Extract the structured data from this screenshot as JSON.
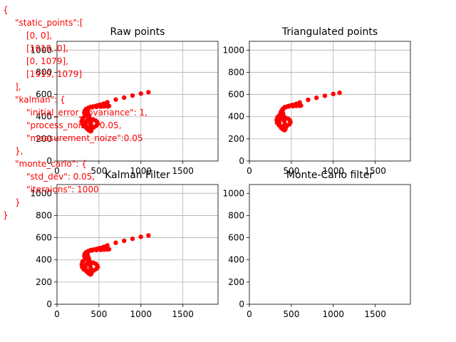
{
  "annotation": {
    "color": "#ff0000",
    "lines": [
      "{",
      "\"static_points\":[",
      "[0, 0],",
      "[1919, 0],",
      "[0, 1079],",
      "[1919, 1079]",
      "],",
      "\"kalman\": {",
      "\"initial_error_covariance\": 1,",
      "\"process_noise\": 0.05,",
      "\"measurement_noize\":0.05",
      "},",
      "\"monte_carlo\": {",
      "\"std_dev\": 0.05,",
      "\"iteraions\": 1000",
      "}",
      "}"
    ]
  },
  "chart_data": [
    {
      "type": "scatter",
      "title": "Raw points",
      "xlim": [
        0,
        1919
      ],
      "ylim": [
        0,
        1079
      ],
      "xticks": [
        0,
        500,
        1000,
        1500
      ],
      "yticks": [
        0,
        200,
        400,
        600,
        800,
        1000
      ],
      "grid": true,
      "color": "#ff0000",
      "points": [
        [
          1090,
          620
        ],
        [
          1000,
          608
        ],
        [
          900,
          590
        ],
        [
          800,
          572
        ],
        [
          700,
          554
        ],
        [
          600,
          530
        ],
        [
          560,
          518
        ],
        [
          520,
          508
        ],
        [
          500,
          504
        ],
        [
          480,
          500
        ],
        [
          460,
          496
        ],
        [
          430,
          492
        ],
        [
          400,
          488
        ],
        [
          370,
          478
        ],
        [
          345,
          468
        ],
        [
          330,
          452
        ],
        [
          325,
          435
        ],
        [
          335,
          420
        ],
        [
          355,
          412
        ],
        [
          330,
          405
        ],
        [
          305,
          385
        ],
        [
          295,
          360
        ],
        [
          300,
          335
        ],
        [
          318,
          315
        ],
        [
          345,
          302
        ],
        [
          378,
          296
        ],
        [
          410,
          297
        ],
        [
          440,
          305
        ],
        [
          468,
          318
        ],
        [
          485,
          334
        ],
        [
          480,
          350
        ],
        [
          460,
          365
        ],
        [
          432,
          374
        ],
        [
          400,
          378
        ],
        [
          370,
          374
        ],
        [
          350,
          362
        ],
        [
          340,
          345
        ],
        [
          340,
          325
        ],
        [
          348,
          305
        ],
        [
          360,
          290
        ],
        [
          380,
          276
        ],
        [
          400,
          268
        ],
        [
          410,
          275
        ],
        [
          410,
          290
        ],
        [
          405,
          310
        ],
        [
          400,
          330
        ],
        [
          395,
          352
        ],
        [
          390,
          372
        ],
        [
          385,
          392
        ],
        [
          380,
          410
        ],
        [
          372,
          425
        ],
        [
          365,
          440
        ],
        [
          360,
          455
        ],
        [
          365,
          470
        ],
        [
          380,
          478
        ],
        [
          420,
          485
        ],
        [
          470,
          488
        ],
        [
          520,
          490
        ],
        [
          560,
          492
        ],
        [
          600,
          494
        ],
        [
          620,
          496
        ],
        [
          610,
          500
        ],
        [
          560,
          503
        ]
      ]
    },
    {
      "type": "scatter",
      "title": "Triangulated points",
      "xlim": [
        0,
        1919
      ],
      "ylim": [
        0,
        1079
      ],
      "xticks": [
        0,
        500,
        1000,
        1500
      ],
      "yticks": [
        0,
        200,
        400,
        600,
        800,
        1000
      ],
      "grid": true,
      "color": "#ff0000",
      "points": [
        [
          1075,
          615
        ],
        [
          1000,
          605
        ],
        [
          900,
          588
        ],
        [
          800,
          570
        ],
        [
          700,
          552
        ],
        [
          600,
          528
        ],
        [
          560,
          516
        ],
        [
          520,
          506
        ],
        [
          500,
          502
        ],
        [
          480,
          498
        ],
        [
          460,
          494
        ],
        [
          440,
          488
        ],
        [
          420,
          480
        ],
        [
          400,
          470
        ],
        [
          385,
          455
        ],
        [
          375,
          440
        ],
        [
          372,
          425
        ],
        [
          360,
          415
        ],
        [
          335,
          395
        ],
        [
          325,
          370
        ],
        [
          330,
          345
        ],
        [
          350,
          325
        ],
        [
          380,
          312
        ],
        [
          415,
          310
        ],
        [
          450,
          318
        ],
        [
          478,
          332
        ],
        [
          490,
          350
        ],
        [
          482,
          368
        ],
        [
          460,
          382
        ],
        [
          430,
          390
        ],
        [
          398,
          390
        ],
        [
          372,
          380
        ],
        [
          358,
          362
        ],
        [
          355,
          340
        ],
        [
          362,
          318
        ],
        [
          380,
          298
        ],
        [
          400,
          285
        ],
        [
          420,
          278
        ],
        [
          430,
          290
        ],
        [
          428,
          312
        ],
        [
          422,
          335
        ],
        [
          416,
          360
        ],
        [
          410,
          385
        ],
        [
          405,
          410
        ],
        [
          400,
          432
        ],
        [
          395,
          452
        ],
        [
          400,
          470
        ],
        [
          420,
          485
        ],
        [
          470,
          492
        ],
        [
          520,
          495
        ],
        [
          560,
          497
        ],
        [
          600,
          498
        ],
        [
          615,
          500
        ],
        [
          600,
          503
        ]
      ]
    },
    {
      "type": "scatter",
      "title": "Kalman Filter",
      "xlim": [
        0,
        1919
      ],
      "ylim": [
        0,
        1079
      ],
      "xticks": [
        0,
        500,
        1000,
        1500
      ],
      "yticks": [
        0,
        200,
        400,
        600,
        800,
        1000
      ],
      "grid": true,
      "color": "#ff0000",
      "points": [
        [
          1090,
          620
        ],
        [
          1000,
          608
        ],
        [
          900,
          590
        ],
        [
          800,
          572
        ],
        [
          700,
          554
        ],
        [
          600,
          530
        ],
        [
          560,
          518
        ],
        [
          520,
          508
        ],
        [
          500,
          504
        ],
        [
          480,
          500
        ],
        [
          460,
          496
        ],
        [
          430,
          492
        ],
        [
          400,
          488
        ],
        [
          370,
          478
        ],
        [
          345,
          468
        ],
        [
          330,
          452
        ],
        [
          325,
          435
        ],
        [
          335,
          420
        ],
        [
          355,
          412
        ],
        [
          330,
          405
        ],
        [
          305,
          385
        ],
        [
          295,
          360
        ],
        [
          300,
          335
        ],
        [
          318,
          315
        ],
        [
          345,
          302
        ],
        [
          378,
          296
        ],
        [
          410,
          297
        ],
        [
          440,
          305
        ],
        [
          468,
          318
        ],
        [
          485,
          334
        ],
        [
          480,
          350
        ],
        [
          460,
          365
        ],
        [
          432,
          374
        ],
        [
          400,
          378
        ],
        [
          370,
          374
        ],
        [
          350,
          362
        ],
        [
          340,
          345
        ],
        [
          340,
          325
        ],
        [
          348,
          305
        ],
        [
          360,
          290
        ],
        [
          380,
          276
        ],
        [
          400,
          268
        ],
        [
          410,
          275
        ],
        [
          410,
          290
        ],
        [
          405,
          310
        ],
        [
          400,
          330
        ],
        [
          395,
          352
        ],
        [
          390,
          372
        ],
        [
          385,
          392
        ],
        [
          380,
          410
        ],
        [
          372,
          425
        ],
        [
          365,
          440
        ],
        [
          360,
          455
        ],
        [
          365,
          470
        ],
        [
          380,
          478
        ],
        [
          420,
          485
        ],
        [
          470,
          488
        ],
        [
          520,
          490
        ],
        [
          560,
          492
        ],
        [
          600,
          494
        ],
        [
          620,
          496
        ],
        [
          610,
          500
        ],
        [
          560,
          503
        ]
      ]
    },
    {
      "type": "scatter",
      "title": "Monte-Carlo filter",
      "xlim": [
        0,
        1919
      ],
      "ylim": [
        0,
        1079
      ],
      "xticks": [
        0,
        500,
        1000,
        1500
      ],
      "yticks": [
        0,
        200,
        400,
        600,
        800,
        1000
      ],
      "grid": false,
      "color": "#ff0000",
      "points": []
    }
  ]
}
